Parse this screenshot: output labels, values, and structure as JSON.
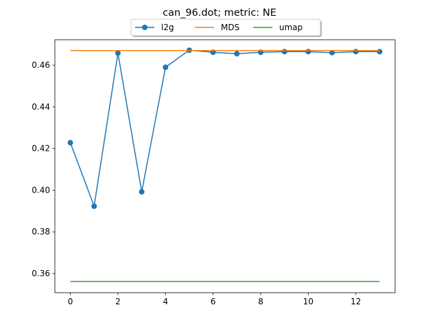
{
  "chart_data": {
    "type": "line",
    "title": "can_96.dot; metric: NE",
    "xlabel": "",
    "ylabel": "",
    "xlim": [
      -0.65,
      13.65
    ],
    "ylim": [
      0.3508,
      0.4722
    ],
    "x_ticks": [
      0,
      2,
      4,
      6,
      8,
      10,
      12
    ],
    "y_ticks": [
      0.36,
      0.38,
      0.4,
      0.42,
      0.44,
      0.46
    ],
    "y_tick_labels": [
      "0.36",
      "0.38",
      "0.40",
      "0.42",
      "0.44",
      "0.46"
    ],
    "x": [
      0,
      1,
      2,
      3,
      4,
      5,
      6,
      7,
      8,
      9,
      10,
      11,
      12,
      13
    ],
    "series": [
      {
        "name": "l2g",
        "color": "#1f77b4",
        "marker": "circle",
        "values": [
          0.4228,
          0.3923,
          0.4658,
          0.3992,
          0.459,
          0.4672,
          0.4662,
          0.4655,
          0.4662,
          0.4665,
          0.4665,
          0.466,
          0.4665,
          0.4665
        ]
      },
      {
        "name": "MDS",
        "color": "#ff7f0e",
        "marker": "none",
        "values": [
          0.467,
          0.467,
          0.467,
          0.467,
          0.467,
          0.467,
          0.467,
          0.467,
          0.467,
          0.467,
          0.467,
          0.467,
          0.467,
          0.467
        ]
      },
      {
        "name": "umap",
        "color": "#2ca02c",
        "marker": "none",
        "values": [
          0.3562,
          0.3562,
          0.3562,
          0.3562,
          0.3562,
          0.3562,
          0.3562,
          0.3562,
          0.3562,
          0.3562,
          0.3562,
          0.3562,
          0.3562,
          0.3562
        ]
      }
    ],
    "legend_position": "top-center, above plot",
    "grid": false
  }
}
